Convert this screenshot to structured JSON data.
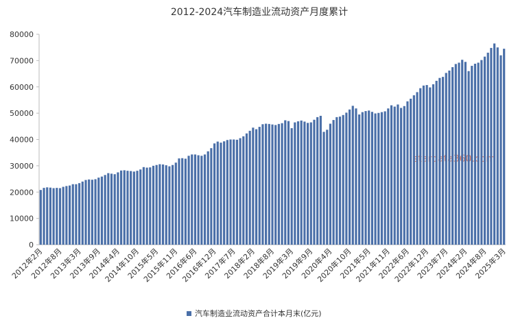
{
  "chart_data": {
    "type": "bar",
    "title": "2012-2024汽车制造业流动资产月度累计",
    "watermark": "stardata360.com",
    "categories": [
      "2012年2月",
      null,
      null,
      null,
      null,
      null,
      "2012年8月",
      null,
      null,
      null,
      null,
      null,
      "2013年3月",
      null,
      null,
      null,
      null,
      null,
      "2013年9月",
      null,
      null,
      null,
      null,
      null,
      "2014年4月",
      null,
      null,
      null,
      null,
      null,
      "2014年10月",
      null,
      null,
      null,
      null,
      null,
      "2015年5月",
      null,
      null,
      null,
      null,
      null,
      "2015年11月",
      null,
      null,
      null,
      null,
      null,
      "2016年6月",
      null,
      null,
      null,
      null,
      null,
      "2016年12月",
      null,
      null,
      null,
      null,
      null,
      "2017年7月",
      null,
      null,
      null,
      null,
      null,
      "2018年2月",
      null,
      null,
      null,
      null,
      null,
      "2018年8月",
      null,
      null,
      null,
      null,
      null,
      "2019年3月",
      null,
      null,
      null,
      null,
      null,
      "2019年9月",
      null,
      null,
      null,
      null,
      null,
      "2020年4月",
      null,
      null,
      null,
      null,
      null,
      "2020年10月",
      null,
      null,
      null,
      null,
      null,
      "2021年5月",
      null,
      null,
      null,
      null,
      null,
      "2021年11月",
      null,
      null,
      null,
      null,
      null,
      "2022年6月",
      null,
      null,
      null,
      null,
      null,
      "2022年12月",
      null,
      null,
      null,
      null,
      null,
      "2023年7月",
      null,
      null,
      null,
      null,
      null,
      "2024年2月",
      null,
      null,
      null,
      null,
      null,
      "2024年8月",
      null,
      null,
      null,
      null,
      null,
      "2025年3月"
    ],
    "series": [
      {
        "name": "汽车制造业流动资产合计本月末(亿元)",
        "color": "#4a6fa8",
        "values": [
          20800,
          21600,
          21800,
          21700,
          21500,
          21600,
          21500,
          22000,
          22300,
          22500,
          23000,
          23000,
          23400,
          24000,
          24600,
          24800,
          24700,
          24900,
          25500,
          25900,
          26500,
          27200,
          27000,
          26800,
          27500,
          28200,
          28300,
          28100,
          28000,
          27800,
          28100,
          28600,
          29500,
          29300,
          29400,
          30000,
          30300,
          30600,
          30500,
          30200,
          29800,
          30300,
          31200,
          32800,
          32900,
          32700,
          33800,
          34300,
          34300,
          34000,
          33800,
          34300,
          35500,
          36700,
          38500,
          39200,
          38800,
          39300,
          39800,
          40000,
          40000,
          39900,
          40500,
          41200,
          42300,
          43300,
          44500,
          43900,
          44800,
          45800,
          46000,
          45900,
          45700,
          45500,
          45900,
          46200,
          47300,
          47000,
          44300,
          46500,
          46900,
          47200,
          46800,
          46300,
          46500,
          47500,
          48500,
          49000,
          42900,
          43700,
          46000,
          47400,
          48500,
          48700,
          49300,
          50200,
          51400,
          52800,
          51800,
          49500,
          50400,
          50800,
          51000,
          50500,
          49900,
          50100,
          50400,
          50700,
          51800,
          53000,
          52500,
          53300,
          52000,
          52700,
          54500,
          55500,
          56800,
          58000,
          59500,
          60500,
          60700,
          59800,
          61000,
          62300,
          63400,
          63800,
          65300,
          66200,
          67500,
          68700,
          69200,
          70300,
          69500,
          66000,
          68000,
          68800,
          69200,
          70200,
          71500,
          73000,
          74800,
          76500,
          75000,
          72000,
          74500
        ]
      }
    ],
    "ylim": [
      0,
      80000
    ],
    "yticks": [
      0,
      10000,
      20000,
      30000,
      40000,
      50000,
      60000,
      70000,
      80000
    ],
    "grid": false
  }
}
